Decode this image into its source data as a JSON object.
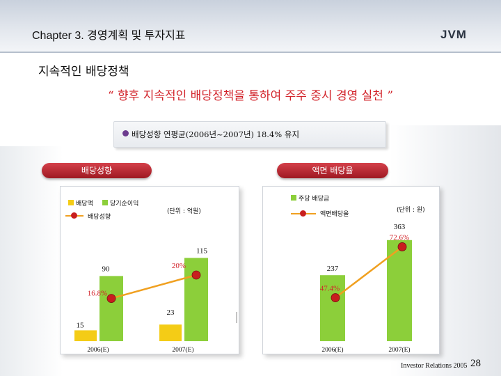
{
  "header": {
    "chapter_title": "Chapter 3. 경영계획 및 투자지표",
    "logo_text": "JVM"
  },
  "section_title": "지속적인 배당정책",
  "quote": "“ 향후 지속적인 배당정책을 통하여 주주 중시 경영 실천 ”",
  "bullet": {
    "text": "배당성향 연평균(2006년~2007년) 18.4% 유지"
  },
  "left_panel": {
    "heading": "배당성향",
    "legend": {
      "dividend": "배당액",
      "net_income": "당기순이익",
      "payout": "배당성향"
    },
    "unit": "(단위 : 억원)"
  },
  "right_panel": {
    "heading": "액면 배당율",
    "legend": {
      "dps": "주당 배당금",
      "yield": "액면배당율"
    },
    "unit": "(단위 : 원)"
  },
  "chart_data": [
    {
      "type": "bar",
      "title": "배당성향",
      "categories": [
        "2006(E)",
        "2007(E)"
      ],
      "series": [
        {
          "name": "배당액",
          "values": [
            15,
            23
          ],
          "color": "#f4cc16"
        },
        {
          "name": "당기순이익",
          "values": [
            90,
            115
          ],
          "color": "#8ccf3a"
        },
        {
          "name": "배당성향",
          "type": "line",
          "values": [
            16.8,
            20
          ],
          "labels": [
            "16.8%",
            "20%"
          ],
          "color": "#f0a020"
        }
      ],
      "ylim": [
        0,
        125
      ],
      "unit": "(단위 : 억원)"
    },
    {
      "type": "bar",
      "title": "액면 배당율",
      "categories": [
        "2006(E)",
        "2007(E)"
      ],
      "series": [
        {
          "name": "주당 배당금",
          "values": [
            237,
            363
          ],
          "color": "#8ccf3a"
        },
        {
          "name": "액면배당율",
          "type": "line",
          "values": [
            47.4,
            72.6
          ],
          "labels": [
            "47.4%",
            "72.6%"
          ],
          "color": "#f0a020"
        }
      ],
      "ylim": [
        0,
        400
      ],
      "unit": "(단위 : 원)"
    }
  ],
  "colors": {
    "accent_red": "#d2232a",
    "bar_green": "#8ccf3a",
    "bar_yellow": "#f4cc16",
    "line_orange": "#f0a020"
  },
  "footer": {
    "label": "Investor Relations 2005",
    "page": "28"
  }
}
